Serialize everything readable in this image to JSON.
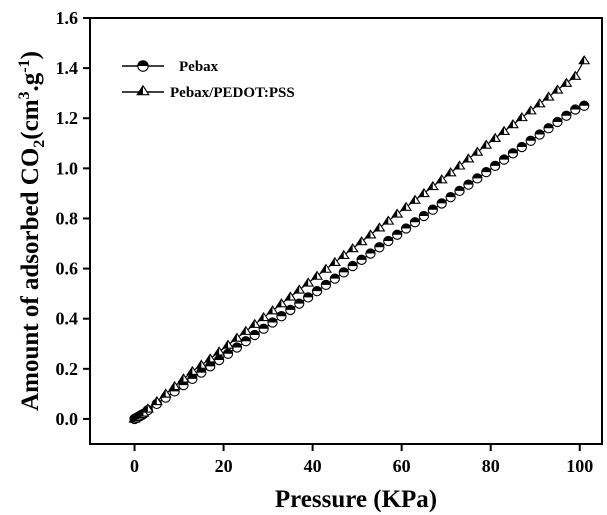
{
  "chart_data": {
    "type": "scatter",
    "title": "",
    "xlabel": "Pressure (KPa)",
    "ylabel": {
      "main": "Amount of adsorbed CO",
      "sub2": "2",
      "unit_a": "(cm",
      "sup3": "3",
      "unit_b": ".g",
      "supneg": "-1",
      "unit_c": ")"
    },
    "xlim": [
      -10,
      105
    ],
    "ylim": [
      -0.1,
      1.6
    ],
    "xticks": [
      0,
      20,
      40,
      60,
      80,
      100
    ],
    "yticks": [
      0.0,
      0.2,
      0.4,
      0.6,
      0.8,
      1.0,
      1.2,
      1.4,
      1.6
    ],
    "xtick_labels": [
      "0",
      "20",
      "40",
      "60",
      "80",
      "100"
    ],
    "ytick_labels": [
      "0.0",
      "0.2",
      "0.4",
      "0.6",
      "0.8",
      "1.0",
      "1.2",
      "1.4",
      "1.6"
    ],
    "legend_position": "top-left",
    "grid": false,
    "series": [
      {
        "name": "Pebax",
        "marker": "half-filled-circle",
        "x": [
          0,
          0.5,
          1,
          1.5,
          2,
          3,
          5,
          7,
          9,
          11,
          13,
          15,
          17,
          19,
          21,
          23,
          25,
          27,
          29,
          31,
          33,
          35,
          37,
          39,
          41,
          43,
          45,
          47,
          49,
          51,
          53,
          55,
          57,
          59,
          61,
          63,
          65,
          67,
          69,
          71,
          73,
          75,
          77,
          79,
          81,
          83,
          85,
          87,
          89,
          91,
          93,
          95,
          97,
          99,
          101
        ],
        "y": [
          0.0,
          0.005,
          0.01,
          0.015,
          0.02,
          0.035,
          0.06,
          0.085,
          0.11,
          0.135,
          0.16,
          0.185,
          0.21,
          0.235,
          0.26,
          0.285,
          0.31,
          0.335,
          0.36,
          0.385,
          0.41,
          0.435,
          0.46,
          0.485,
          0.51,
          0.535,
          0.56,
          0.585,
          0.61,
          0.635,
          0.66,
          0.685,
          0.71,
          0.735,
          0.76,
          0.785,
          0.81,
          0.835,
          0.86,
          0.885,
          0.91,
          0.935,
          0.96,
          0.985,
          1.01,
          1.035,
          1.06,
          1.085,
          1.11,
          1.135,
          1.16,
          1.185,
          1.21,
          1.235,
          1.25
        ]
      },
      {
        "name": "Pebax/PEDOT:PSS",
        "marker": "half-filled-triangle",
        "x": [
          0,
          0.5,
          1,
          1.5,
          2,
          3,
          5,
          7,
          9,
          11,
          13,
          15,
          17,
          19,
          21,
          23,
          25,
          27,
          29,
          31,
          33,
          35,
          37,
          39,
          41,
          43,
          45,
          47,
          49,
          51,
          53,
          55,
          57,
          59,
          61,
          63,
          65,
          67,
          69,
          71,
          73,
          75,
          77,
          79,
          81,
          83,
          85,
          87,
          89,
          91,
          93,
          95,
          97,
          99,
          101
        ],
        "y": [
          0.0,
          0.006,
          0.012,
          0.018,
          0.024,
          0.04,
          0.07,
          0.1,
          0.13,
          0.16,
          0.19,
          0.215,
          0.24,
          0.268,
          0.295,
          0.323,
          0.35,
          0.378,
          0.405,
          0.432,
          0.46,
          0.487,
          0.515,
          0.543,
          0.57,
          0.598,
          0.625,
          0.653,
          0.68,
          0.708,
          0.735,
          0.763,
          0.79,
          0.818,
          0.845,
          0.873,
          0.9,
          0.928,
          0.955,
          0.983,
          1.01,
          1.038,
          1.065,
          1.093,
          1.12,
          1.148,
          1.175,
          1.203,
          1.23,
          1.258,
          1.285,
          1.313,
          1.34,
          1.368,
          1.43
        ]
      }
    ]
  }
}
